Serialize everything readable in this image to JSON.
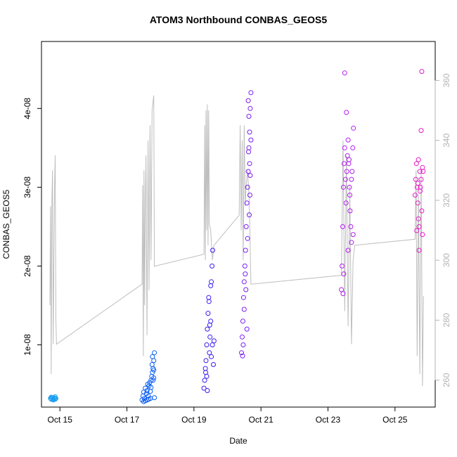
{
  "chart_data": {
    "type": "scatter",
    "title": "ATOM3 Northbound CONBAS_GEOS5",
    "xlabel": "Date",
    "ylabel": "CONBAS_GEOS5",
    "x_range_day": [
      14.45,
      26.2
    ],
    "ylim": [
      2.1e-09,
      4.85e-08
    ],
    "y2lim": [
      251,
      373
    ],
    "x_ticks": [
      {
        "day": 15,
        "label": "Oct 15"
      },
      {
        "day": 17,
        "label": "Oct 17"
      },
      {
        "day": 19,
        "label": "Oct 19"
      },
      {
        "day": 21,
        "label": "Oct 21"
      },
      {
        "day": 23,
        "label": "Oct 23"
      },
      {
        "day": 25,
        "label": "Oct 25"
      }
    ],
    "y_ticks": [
      {
        "value": 1e-08,
        "label": "1e-08"
      },
      {
        "value": 2e-08,
        "label": "2e-08"
      },
      {
        "value": 3e-08,
        "label": "3e-08"
      },
      {
        "value": 4e-08,
        "label": "4e-08"
      }
    ],
    "y2_ticks": [
      {
        "value": 260,
        "label": "260"
      },
      {
        "value": 280,
        "label": "280"
      },
      {
        "value": 300,
        "label": "300"
      },
      {
        "value": 320,
        "label": "320"
      },
      {
        "value": 340,
        "label": "340"
      },
      {
        "value": 360,
        "label": "360"
      }
    ],
    "grid": false,
    "legend": "none",
    "colors": {
      "line": "#bebebe",
      "axis": "#000000",
      "axis2": "#b3b3b3"
    },
    "flights": [
      {
        "color": "#1a9ef0",
        "x": [
          14.72,
          14.74,
          14.76,
          14.78,
          14.8,
          14.82,
          14.84,
          14.86,
          14.88,
          14.74,
          14.8,
          14.86
        ],
        "y": [
          3.2e-09,
          3.1e-09,
          3.3e-09,
          3.2e-09,
          3.1e-09,
          3.3e-09,
          3.2e-09,
          3.4e-09,
          3.2e-09,
          3.35e-09,
          3e-09,
          3.1e-09
        ]
      },
      {
        "color": "#0a5ef5",
        "x": [
          17.45,
          17.48,
          17.5,
          17.52,
          17.55,
          17.58,
          17.6,
          17.62,
          17.64,
          17.66,
          17.68,
          17.7,
          17.72,
          17.74,
          17.76,
          17.78,
          17.8,
          17.82,
          17.5,
          17.6,
          17.7,
          17.75,
          17.8,
          17.55,
          17.65,
          17.72,
          17.78,
          17.82,
          17.8,
          17.76
        ],
        "y": [
          3e-09,
          3.5e-09,
          4e-09,
          3.2e-09,
          4.5e-09,
          3.8e-09,
          4.2e-09,
          5e-09,
          3.5e-09,
          4.8e-09,
          5.2e-09,
          4.1e-09,
          5.5e-09,
          6e-09,
          6.5e-09,
          7e-09,
          5.8e-09,
          9e-09,
          2.8e-09,
          3e-09,
          3.2e-09,
          7.5e-09,
          8e-09,
          2.9e-09,
          3.1e-09,
          4.6e-09,
          5.5e-09,
          3.3e-09,
          6.8e-09,
          8.5e-09
        ]
      },
      {
        "color": "#3a1ef0",
        "x": [
          19.3,
          19.32,
          19.34,
          19.36,
          19.38,
          19.4,
          19.42,
          19.44,
          19.46,
          19.48,
          19.5,
          19.52,
          19.54,
          19.56,
          19.35,
          19.45,
          19.5,
          19.55,
          19.4,
          19.6,
          19.58,
          19.52,
          19.47,
          19.38
        ],
        "y": [
          4.5e-09,
          5.5e-09,
          7e-09,
          8e-09,
          1e-08,
          1.2e-08,
          1.4e-08,
          1.6e-08,
          9e-09,
          1.1e-08,
          1.3e-08,
          1.8e-08,
          2e-08,
          2.2e-08,
          6.5e-09,
          1.55e-08,
          1.75e-08,
          1e-08,
          4.2e-09,
          1.05e-08,
          7.5e-09,
          8.5e-09,
          1.25e-08,
          6e-09
        ]
      },
      {
        "color": "#7a1ef0",
        "x": [
          20.42,
          20.44,
          20.46,
          20.48,
          20.5,
          20.52,
          20.54,
          20.56,
          20.58,
          20.6,
          20.62,
          20.64,
          20.66,
          20.68,
          20.7,
          20.45,
          20.5,
          20.55,
          20.6,
          20.65,
          20.68,
          20.66,
          20.63,
          20.58,
          20.53,
          20.47,
          20.62,
          20.64,
          20.7,
          20.67
        ],
        "y": [
          9e-09,
          1.1e-08,
          1.3e-08,
          1.6e-08,
          1.8e-08,
          2e-08,
          2.2e-08,
          2.5e-08,
          2.8e-08,
          3e-08,
          3.2e-08,
          3.5e-08,
          3.7e-08,
          4e-08,
          4.2e-08,
          8.6e-09,
          1.45e-08,
          1.7e-08,
          2.35e-08,
          2.65e-08,
          3.15e-08,
          3.3e-08,
          3.45e-08,
          1.2e-08,
          1.9e-08,
          1e-08,
          4.1e-08,
          3.9e-08,
          3.6e-08,
          2.9e-08
        ]
      },
      {
        "color": "#b41ef0",
        "x": [
          23.4,
          23.42,
          23.44,
          23.46,
          23.48,
          23.5,
          23.52,
          23.54,
          23.56,
          23.58,
          23.6,
          23.62,
          23.64,
          23.66,
          23.68,
          23.7,
          23.72,
          23.74,
          23.76,
          23.45,
          23.5,
          23.55,
          23.6,
          23.65,
          23.7,
          23.75,
          23.47,
          23.63
        ],
        "y": [
          1.7e-08,
          2e-08,
          2.5e-08,
          3e-08,
          3.3e-08,
          3.5e-08,
          3.1e-08,
          2.8e-08,
          3.2e-08,
          3.4e-08,
          3.6e-08,
          3.3e-08,
          3e-08,
          2.7e-08,
          2.5e-08,
          2.3e-08,
          3.2e-08,
          3.5e-08,
          3.75e-08,
          1.65e-08,
          4.45e-08,
          3.95e-08,
          2.2e-08,
          2.9e-08,
          3.1e-08,
          2.4e-08,
          1.9e-08,
          3.35e-08
        ]
      },
      {
        "color": "#e61ec8",
        "x": [
          25.6,
          25.62,
          25.64,
          25.66,
          25.68,
          25.7,
          25.72,
          25.74,
          25.76,
          25.78,
          25.8,
          25.82,
          25.84,
          25.65,
          25.7,
          25.75,
          25.8,
          25.78,
          25.72,
          25.68,
          25.82
        ],
        "y": [
          2.9e-08,
          3.1e-08,
          3.3e-08,
          3e-08,
          2.8e-08,
          2.6e-08,
          2.5e-08,
          3.2e-08,
          3e-08,
          3.1e-08,
          2.7e-08,
          2.4e-08,
          3.2e-08,
          2.45e-08,
          3.35e-08,
          2.95e-08,
          4.47e-08,
          3.72e-08,
          2.2e-08,
          3.05e-08,
          3.25e-08
        ]
      }
    ],
    "secondary_line": {
      "color": "#bebebe",
      "x": [
        14.7,
        14.72,
        14.74,
        14.76,
        14.78,
        14.8,
        14.82,
        14.84,
        14.86,
        14.88,
        14.9,
        17.45,
        17.47,
        17.49,
        17.51,
        17.53,
        17.55,
        17.57,
        17.6,
        17.63,
        17.66,
        17.69,
        17.72,
        17.75,
        17.8,
        17.82,
        19.3,
        19.32,
        19.34,
        19.36,
        19.38,
        19.4,
        19.42,
        19.44,
        19.46,
        19.5,
        19.55,
        19.6,
        20.35,
        20.38,
        20.41,
        20.44,
        20.47,
        20.5,
        20.53,
        20.56,
        20.6,
        20.65,
        20.7,
        23.4,
        23.45,
        23.5,
        23.55,
        23.6,
        23.65,
        23.7,
        23.75,
        23.8,
        25.6,
        25.63,
        25.66,
        25.7,
        25.74,
        25.78,
        25.82,
        25.85
      ],
      "y": [
        285,
        318,
        262,
        320,
        330,
        272,
        300,
        325,
        335,
        280,
        272,
        292,
        325,
        268,
        330,
        285,
        320,
        335,
        275,
        340,
        290,
        345,
        300,
        350,
        355,
        298,
        302,
        345,
        300,
        350,
        310,
        352,
        305,
        350,
        312,
        310,
        300,
        305,
        315,
        345,
        310,
        340,
        300,
        345,
        318,
        325,
        330,
        320,
        292,
        295,
        340,
        283,
        335,
        278,
        325,
        272,
        300,
        305,
        307,
        330,
        268,
        322,
        262,
        330,
        258,
        288
      ]
    }
  }
}
